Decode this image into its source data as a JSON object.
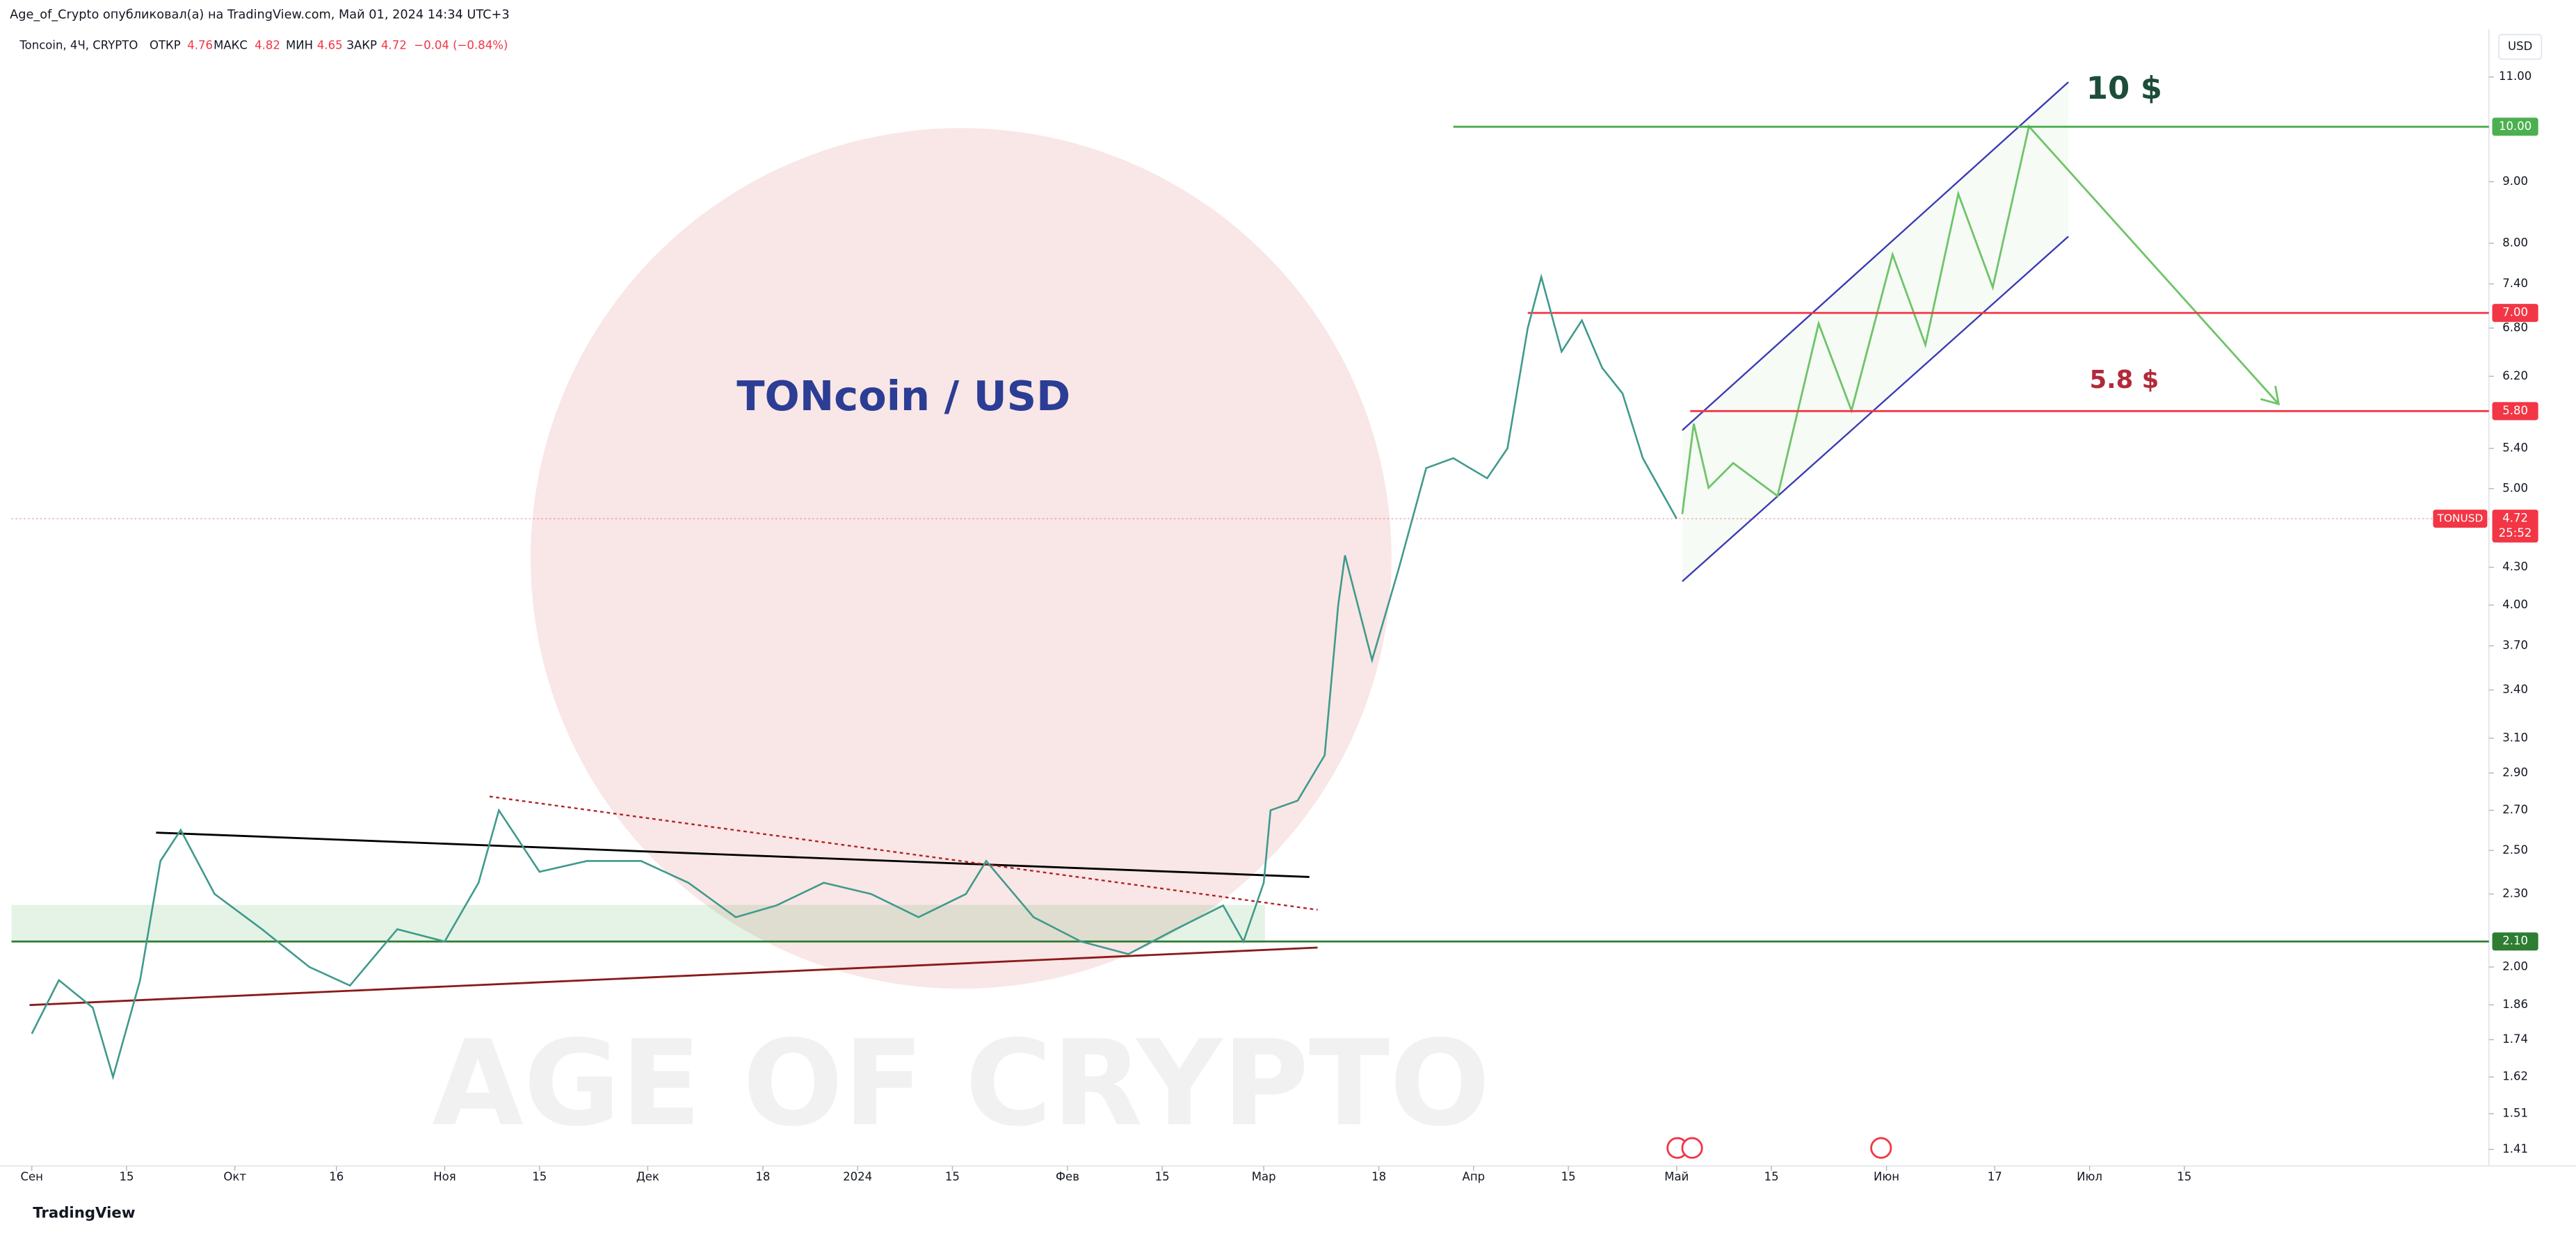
{
  "header": {
    "published": "Age_of_Crypto опубликовал(а) на TradingView.com, Май 01, 2024 14:34 UTC+3",
    "symbol": "Toncoin, 4Ч, CRYPTO",
    "open_label": "ОТКР",
    "open": "4.76",
    "high_label": "МАКС",
    "high": "4.82",
    "low_label": "МИН",
    "low": "4.65",
    "close_label": "ЗАКР",
    "close": "4.72",
    "change": "−0.04 (−0.84%)"
  },
  "currency": "USD",
  "brand": "TradingView",
  "chart_data": {
    "type": "line",
    "title": "TONcoin / USD",
    "watermark": "AGE OF CRYPTO",
    "annotations": [
      "10 $",
      "5.8 $"
    ],
    "log_scale": true,
    "grid": false,
    "x": [
      "2023-09-01",
      "2023-09-05",
      "2023-09-10",
      "2023-09-13",
      "2023-09-17",
      "2023-09-20",
      "2023-09-23",
      "2023-09-28",
      "2023-10-05",
      "2023-10-12",
      "2023-10-18",
      "2023-10-25",
      "2023-11-01",
      "2023-11-06",
      "2023-11-09",
      "2023-11-15",
      "2023-11-22",
      "2023-11-30",
      "2023-12-07",
      "2023-12-14",
      "2023-12-20",
      "2023-12-27",
      "2024-01-03",
      "2024-01-10",
      "2024-01-17",
      "2024-01-20",
      "2024-01-27",
      "2024-02-03",
      "2024-02-10",
      "2024-02-17",
      "2024-02-24",
      "2024-02-27",
      "2024-03-01",
      "2024-03-02",
      "2024-03-06",
      "2024-03-10",
      "2024-03-12",
      "2024-03-13",
      "2024-03-17",
      "2024-03-21",
      "2024-03-25",
      "2024-03-29",
      "2024-04-03",
      "2024-04-06",
      "2024-04-09",
      "2024-04-11",
      "2024-04-14",
      "2024-04-17",
      "2024-04-20",
      "2024-04-23",
      "2024-04-26",
      "2024-05-01"
    ],
    "series": [
      {
        "name": "TONUSD",
        "color": "#3f9a8c",
        "values": [
          1.76,
          1.95,
          1.85,
          1.62,
          1.95,
          2.45,
          2.6,
          2.3,
          2.15,
          2.0,
          1.93,
          2.15,
          2.1,
          2.35,
          2.7,
          2.4,
          2.45,
          2.45,
          2.35,
          2.2,
          2.25,
          2.35,
          2.3,
          2.2,
          2.3,
          2.45,
          2.2,
          2.1,
          2.05,
          2.15,
          2.25,
          2.1,
          2.35,
          2.7,
          2.75,
          3.0,
          4.0,
          4.4,
          3.6,
          4.3,
          5.2,
          5.3,
          5.1,
          5.4,
          6.8,
          7.5,
          6.5,
          6.9,
          6.3,
          6.0,
          5.3,
          4.72
        ]
      }
    ],
    "last_price": 4.72,
    "countdown": "25:52",
    "last_color": "#f23645",
    "levels": [
      {
        "value": 10,
        "label": "10.00",
        "from": "2024-03-29",
        "color": "#4caf50"
      },
      {
        "value": 7,
        "label": "7.00",
        "from": "2024-04-09",
        "color": "#f23645"
      },
      {
        "value": 5.8,
        "label": "5.80",
        "from": "2024-05-03",
        "color": "#f23645"
      },
      {
        "value": 2.1,
        "label": "2.10",
        "from": "2023-08-29",
        "color": "#2e7d32"
      }
    ],
    "xlim": [
      "2023-08-29",
      "2024-08-29"
    ],
    "xticks": [
      {
        "value": "2023-09-01",
        "label": "Сен"
      },
      {
        "value": "2023-09-15",
        "label": "15"
      },
      {
        "value": "2023-10-01",
        "label": "Окт"
      },
      {
        "value": "2023-10-16",
        "label": "16"
      },
      {
        "value": "2023-11-01",
        "label": "Ноя"
      },
      {
        "value": "2023-11-15",
        "label": "15"
      },
      {
        "value": "2023-12-01",
        "label": "Дек"
      },
      {
        "value": "2023-12-18",
        "label": "18"
      },
      {
        "value": "2024-01-01",
        "label": "2024"
      },
      {
        "value": "2024-01-15",
        "label": "15"
      },
      {
        "value": "2024-02-01",
        "label": "Фев"
      },
      {
        "value": "2024-02-15",
        "label": "15"
      },
      {
        "value": "2024-03-01",
        "label": "Мар"
      },
      {
        "value": "2024-03-18",
        "label": "18"
      },
      {
        "value": "2024-04-01",
        "label": "Апр"
      },
      {
        "value": "2024-04-15",
        "label": "15"
      },
      {
        "value": "2024-05-01",
        "label": "Май"
      },
      {
        "value": "2024-05-15",
        "label": "15"
      },
      {
        "value": "2024-06-01",
        "label": "Июн"
      },
      {
        "value": "2024-06-17",
        "label": "17"
      },
      {
        "value": "2024-07-01",
        "label": "Июл"
      },
      {
        "value": "2024-07-15",
        "label": "15"
      }
    ],
    "ylim": [
      1.366,
      11.97
    ],
    "yticks": [
      {
        "value": 11,
        "label": "11.00"
      },
      {
        "value": 9,
        "label": "9.00"
      },
      {
        "value": 8,
        "label": "8.00"
      },
      {
        "value": 7.4,
        "label": "7.40"
      },
      {
        "value": 6.8,
        "label": "6.80"
      },
      {
        "value": 6.2,
        "label": "6.20"
      },
      {
        "value": 5.4,
        "label": "5.40"
      },
      {
        "value": 5,
        "label": "5.00"
      },
      {
        "value": 4.3,
        "label": "4.30"
      },
      {
        "value": 4,
        "label": "4.00"
      },
      {
        "value": 3.7,
        "label": "3.70"
      },
      {
        "value": 3.4,
        "label": "3.40"
      },
      {
        "value": 3.1,
        "label": "3.10"
      },
      {
        "value": 2.9,
        "label": "2.90"
      },
      {
        "value": 2.7,
        "label": "2.70"
      },
      {
        "value": 2.5,
        "label": "2.50"
      },
      {
        "value": 2.3,
        "label": "2.30"
      },
      {
        "value": 2,
        "label": "2.00"
      },
      {
        "value": 1.86,
        "label": "1.86"
      },
      {
        "value": 1.74,
        "label": "1.74"
      },
      {
        "value": 1.62,
        "label": "1.62"
      },
      {
        "value": 1.51,
        "label": "1.51"
      },
      {
        "value": 1.41,
        "label": "1.41"
      }
    ]
  }
}
